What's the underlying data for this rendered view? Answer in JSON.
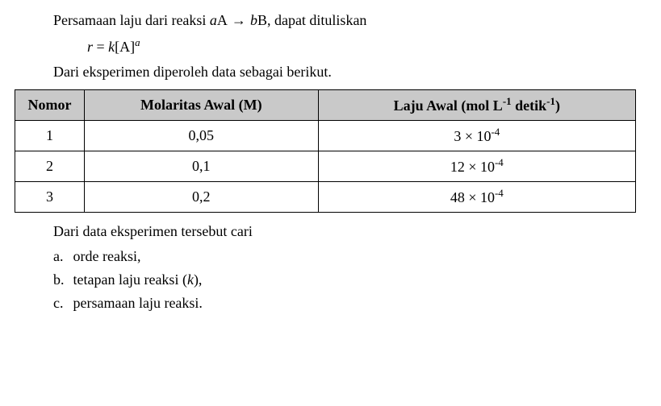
{
  "intro": {
    "line1_pre": "Persamaan laju dari reaksi ",
    "line1_a": "a",
    "line1_A": "A",
    "line1_arrow": " → ",
    "line1_b": "b",
    "line1_B": "B",
    "line1_post": ", dapat dituliskan",
    "eq_r": "r",
    "eq_eq": " = ",
    "eq_k": "k",
    "eq_open": "[",
    "eq_A": "A",
    "eq_close": "]",
    "eq_exp": "a",
    "line3": "Dari eksperimen diperoleh data sebagai berikut."
  },
  "table": {
    "header": {
      "nomor": "Nomor",
      "molaritas": "Molaritas Awal (M)",
      "laju_pre": "Laju Awal (mol L",
      "laju_sup1": "-1",
      "laju_mid": " detik",
      "laju_sup2": "-1",
      "laju_post": ")"
    },
    "col_widths": {
      "nomor": 86,
      "mol": 290,
      "laju": 394
    },
    "header_bg": "#c9c9c9",
    "border_color": "#000000",
    "rows": [
      {
        "n": "1",
        "m": "0,05",
        "coef": "3",
        "exp": "-4"
      },
      {
        "n": "2",
        "m": "0,1",
        "coef": "12",
        "exp": "-4"
      },
      {
        "n": "3",
        "m": "0,2",
        "coef": "48",
        "exp": "-4"
      }
    ]
  },
  "tasks": {
    "lead": "Dari data eksperimen tersebut cari",
    "items": [
      {
        "label": "a.",
        "text": "orde reaksi,"
      },
      {
        "label": "b.",
        "text_pre": "tetapan laju reaksi (",
        "text_it": "k",
        "text_post": "),"
      },
      {
        "label": "c.",
        "text": "persamaan laju reaksi."
      }
    ]
  }
}
